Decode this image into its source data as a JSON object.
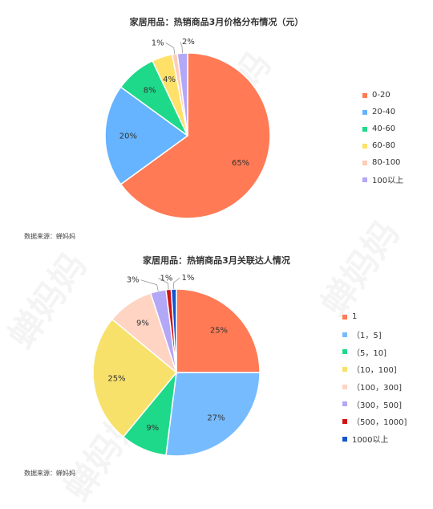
{
  "watermark": "蝉妈妈",
  "chart_data": [
    {
      "type": "pie",
      "title": "家居用品：热销商品3月价格分布情况（元）",
      "categories": [
        "0-20",
        "20-40",
        "40-60",
        "60-80",
        "80-100",
        "100以上"
      ],
      "values": [
        65,
        20,
        8,
        4,
        1,
        2
      ],
      "labels": [
        "65%",
        "20%",
        "8%",
        "4%",
        "1%",
        "2%"
      ],
      "colors": [
        "#FF7A55",
        "#66B3FF",
        "#1FD98A",
        "#FFE169",
        "#FFCCB8",
        "#B3A8F7"
      ],
      "legend_position": "right",
      "source": "数据来源：蝉妈妈"
    },
    {
      "type": "pie",
      "title": "家居用品：热销商品3月关联达人情况",
      "categories": [
        "1",
        "（1，5]",
        "（5，10]",
        "（10，100]",
        "（100，300]",
        "（300，500]",
        "（500，1000]",
        "1000以上"
      ],
      "values": [
        25,
        27,
        9,
        25,
        9,
        3,
        1,
        1
      ],
      "labels": [
        "25%",
        "27%",
        "9%",
        "25%",
        "9%",
        "3%",
        "1%",
        "1%"
      ],
      "colors": [
        "#FF7A55",
        "#77BBFF",
        "#1FD98A",
        "#F7E16A",
        "#FFD4C3",
        "#B3A8F7",
        "#D01414",
        "#1456D0"
      ],
      "legend_position": "right",
      "source": "数据来源：蝉妈妈"
    }
  ]
}
